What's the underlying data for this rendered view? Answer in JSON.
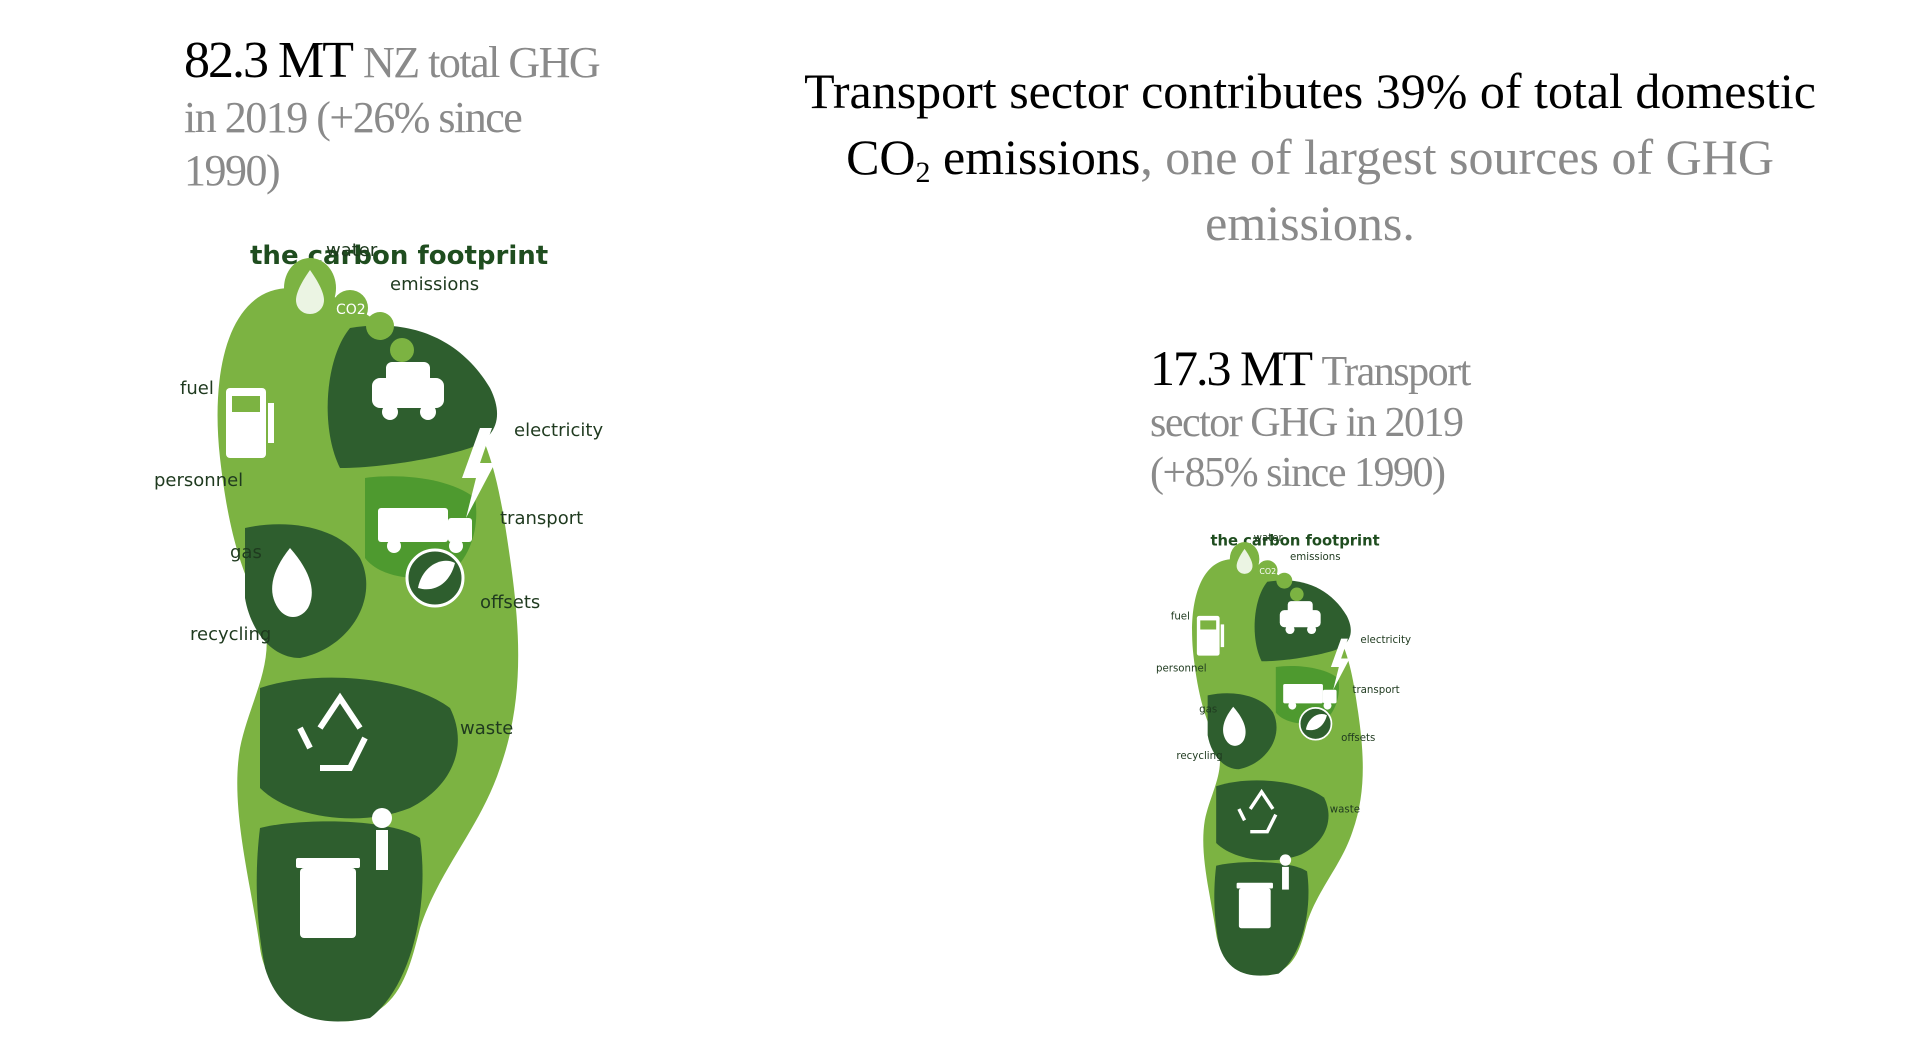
{
  "stat_total": {
    "value": "82.3 MT",
    "description": "NZ total GHG in 2019 (+26% since 1990)"
  },
  "headline": {
    "part1": "Transport sector",
    "part2": " contributes 39% of total domestic CO",
    "subscript": "2",
    "part3": " emissions",
    "part4": ", one of largest sources of GHG emissions."
  },
  "stat_transport": {
    "value": "17.3 MT",
    "description": "Transport sector GHG in 2019 (+85% since 1990)"
  },
  "footprint": {
    "title": "the carbon footprint",
    "labels": {
      "water": "water",
      "emissions": "emissions",
      "fuel": "fuel",
      "electricity": "electricity",
      "personnel": "personnel",
      "transport": "transport",
      "gas": "gas",
      "offsets": "offsets",
      "recycling": "recycling",
      "waste": "waste"
    },
    "co2_badge": "CO2",
    "colors": {
      "light": "#7cb342",
      "mid": "#4e9a2f",
      "dark": "#2e5e2e",
      "white": "#ffffff"
    }
  }
}
